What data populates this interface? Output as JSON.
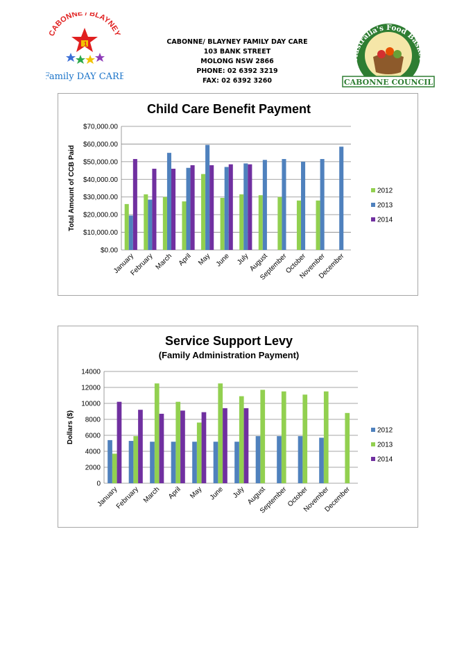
{
  "header": {
    "org_name": "CABONNE/ BLAYNEY FAMILY DAY CARE",
    "street": "103 BANK STREET",
    "town": "MOLONG NSW 2866",
    "phone": "PHONE: 02 6392 3219",
    "fax": "FAX: 02 6392 3260"
  },
  "logo_left": {
    "arc_text": "CABONNE / BLAYNEY",
    "bottom_text": "Family DAY CARE"
  },
  "logo_right": {
    "arc_text": "Australia's Food Basket",
    "bottom_text": "CABONNE COUNCIL"
  },
  "colors": {
    "green": "#92d050",
    "blue": "#4f81bd",
    "purple": "#7030a0",
    "grid": "#868686"
  },
  "chart_data": [
    {
      "type": "bar",
      "title": "Child Care Benefit Payment",
      "subtitle": "",
      "xlabel": "",
      "ylabel": "Total Amount of CCB Paid",
      "ylim": [
        0,
        70000
      ],
      "yticks": [
        "$0.00",
        "$10,000.00",
        "$20,000.00",
        "$30,000.00",
        "$40,000.00",
        "$50,000.00",
        "$60,000.00",
        "$70,000.00"
      ],
      "categories": [
        "January",
        "February",
        "March",
        "April",
        "May",
        "June",
        "July",
        "August",
        "September",
        "October",
        "November",
        "December"
      ],
      "series": [
        {
          "name": "2012",
          "color": "#92d050",
          "values": [
            26000,
            31500,
            30000,
            27500,
            43000,
            29500,
            31500,
            31000,
            30000,
            28000,
            28000,
            null
          ]
        },
        {
          "name": "2013",
          "color": "#4f81bd",
          "values": [
            19500,
            28500,
            55000,
            46500,
            59500,
            47000,
            49000,
            51000,
            51500,
            50000,
            51500,
            58500
          ]
        },
        {
          "name": "2014",
          "color": "#7030a0",
          "values": [
            51500,
            46000,
            46000,
            48000,
            48000,
            48500,
            48500,
            null,
            null,
            null,
            null,
            null
          ]
        }
      ],
      "legend": "right"
    },
    {
      "type": "bar",
      "title": "Service Support Levy",
      "subtitle": "(Family Administration Payment)",
      "xlabel": "",
      "ylabel": "Dollars ($)",
      "ylim": [
        0,
        14000
      ],
      "yticks": [
        "0",
        "2000",
        "4000",
        "6000",
        "8000",
        "10000",
        "12000",
        "14000"
      ],
      "categories": [
        "January",
        "February",
        "March",
        "April",
        "May",
        "June",
        "July",
        "August",
        "September",
        "October",
        "November",
        "December"
      ],
      "series": [
        {
          "name": "2012",
          "color": "#4f81bd",
          "values": [
            5400,
            5300,
            5200,
            5200,
            5200,
            5200,
            5200,
            5900,
            5900,
            5900,
            5700,
            null
          ]
        },
        {
          "name": "2013",
          "color": "#92d050",
          "values": [
            3700,
            5900,
            12500,
            10200,
            7600,
            12500,
            10900,
            11700,
            11500,
            11100,
            11500,
            8800
          ]
        },
        {
          "name": "2014",
          "color": "#7030a0",
          "values": [
            10200,
            9200,
            8700,
            9100,
            8900,
            9400,
            9400,
            null,
            null,
            null,
            null,
            null
          ]
        }
      ],
      "legend": "right"
    }
  ]
}
